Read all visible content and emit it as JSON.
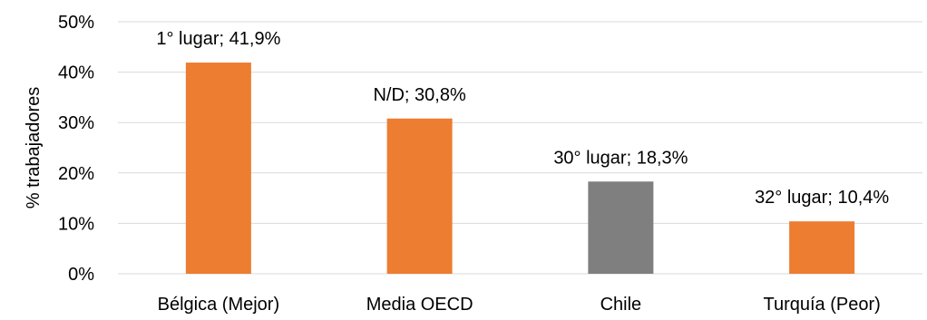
{
  "chart_data": {
    "type": "bar",
    "categories": [
      "Bélgica (Mejor)",
      "Media OECD",
      "Chile",
      "Turquía (Peor)"
    ],
    "values": [
      41.9,
      30.8,
      18.3,
      10.4
    ],
    "data_labels": [
      "1° lugar; 41,9%",
      "N/D; 30,8%",
      "30° lugar; 18,3%",
      "32° lugar; 10,4%"
    ],
    "bar_colors": [
      "#ed7d31",
      "#ed7d31",
      "#7f7f7f",
      "#ed7d31"
    ],
    "ylabel": "% trabajadores",
    "ylim": [
      0,
      50
    ],
    "yticks": [
      0,
      10,
      20,
      30,
      40,
      50
    ],
    "ytick_labels": [
      "0%",
      "10%",
      "20%",
      "30%",
      "40%",
      "50%"
    ],
    "grid": true,
    "legend": "none"
  }
}
